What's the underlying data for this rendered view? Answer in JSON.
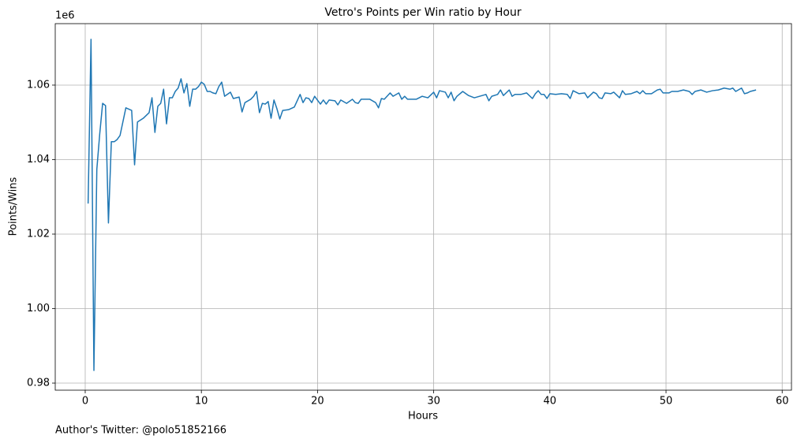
{
  "chart_data": {
    "type": "line",
    "title": "Vetro's Points per Win ratio by Hour",
    "xlabel": "Hours",
    "ylabel": "Points/Wins",
    "y_offset_label": "1e6",
    "footer": "Author's Twitter: @polo51852166",
    "grid": true,
    "xlim": [
      -2.58,
      60.8
    ],
    "ylim": [
      0.9781,
      1.0765
    ],
    "xticks": [
      0,
      10,
      20,
      30,
      40,
      50,
      60
    ],
    "yticks": [
      0.98,
      {
        "value": 1,
        "label": "1.00"
      },
      1.02,
      1.04,
      1.06
    ],
    "x": [
      0.25,
      0.5,
      0.75,
      1.0,
      1.25,
      1.5,
      1.75,
      2.0,
      2.25,
      2.5,
      2.75,
      3.0,
      3.5,
      4.0,
      4.25,
      4.5,
      5.0,
      5.5,
      5.75,
      6.0,
      6.25,
      6.5,
      6.75,
      7.0,
      7.25,
      7.5,
      7.75,
      8.0,
      8.25,
      8.5,
      8.75,
      9.0,
      9.25,
      9.5,
      9.75,
      10.0,
      10.25,
      10.5,
      10.75,
      11.0,
      11.25,
      11.5,
      11.75,
      12.0,
      12.5,
      12.75,
      13.25,
      13.5,
      13.75,
      14.25,
      14.5,
      14.75,
      15.0,
      15.25,
      15.5,
      15.75,
      16.0,
      16.25,
      16.5,
      16.75,
      17.0,
      17.5,
      18.0,
      18.5,
      18.75,
      19.0,
      19.25,
      19.5,
      19.75,
      20.25,
      20.5,
      20.75,
      21.0,
      21.5,
      21.75,
      22.0,
      22.5,
      23.0,
      23.25,
      23.5,
      23.75,
      24.5,
      25.0,
      25.25,
      25.5,
      25.75,
      26.25,
      26.5,
      27.0,
      27.25,
      27.5,
      27.75,
      28.5,
      29.0,
      29.5,
      30.0,
      30.25,
      30.5,
      31.0,
      31.25,
      31.5,
      31.75,
      32.0,
      32.5,
      33.0,
      33.5,
      34.5,
      34.75,
      35.0,
      35.5,
      35.75,
      36.0,
      36.5,
      36.75,
      37.0,
      37.5,
      38.0,
      38.5,
      38.75,
      39.0,
      39.25,
      39.5,
      39.75,
      40.0,
      40.5,
      41.0,
      41.5,
      41.75,
      42.0,
      42.5,
      43.0,
      43.25,
      43.75,
      44.0,
      44.25,
      44.5,
      44.75,
      45.25,
      45.5,
      46.0,
      46.25,
      46.5,
      47.0,
      47.5,
      47.75,
      48.0,
      48.25,
      48.75,
      49.25,
      49.5,
      49.75,
      50.25,
      50.5,
      51.0,
      51.5,
      52.0,
      52.25,
      52.5,
      53.0,
      53.5,
      54.0,
      54.5,
      55.0,
      55.5,
      55.75,
      56.0,
      56.5,
      56.75,
      57.0,
      57.25,
      57.75
    ],
    "series": [
      {
        "color": "#1f77b4",
        "values": [
          1.0282,
          1.0723,
          0.9834,
          1.0374,
          1.0469,
          1.0551,
          1.0545,
          1.023,
          1.0448,
          1.0448,
          1.0454,
          1.0465,
          1.0539,
          1.0532,
          1.0386,
          1.0501,
          1.0511,
          1.0526,
          1.0566,
          1.0473,
          1.0543,
          1.0551,
          1.0589,
          1.0496,
          1.0566,
          1.0566,
          1.0583,
          1.0592,
          1.0617,
          1.0579,
          1.0604,
          1.0543,
          1.0589,
          1.0589,
          1.0596,
          1.0608,
          1.0602,
          1.0583,
          1.0583,
          1.0579,
          1.0577,
          1.0596,
          1.0608,
          1.057,
          1.0581,
          1.0564,
          1.0568,
          1.0528,
          1.0553,
          1.0562,
          1.057,
          1.0583,
          1.0526,
          1.0551,
          1.0549,
          1.0556,
          1.0511,
          1.056,
          1.0537,
          1.0509,
          1.0532,
          1.0534,
          1.0541,
          1.0575,
          1.0553,
          1.0566,
          1.0564,
          1.0553,
          1.057,
          1.0549,
          1.056,
          1.0549,
          1.056,
          1.0558,
          1.0547,
          1.056,
          1.0551,
          1.0562,
          1.0553,
          1.0551,
          1.0562,
          1.0562,
          1.0553,
          1.0539,
          1.0564,
          1.0562,
          1.0579,
          1.057,
          1.0579,
          1.0562,
          1.057,
          1.0562,
          1.0562,
          1.057,
          1.0566,
          1.0581,
          1.0566,
          1.0585,
          1.0581,
          1.0566,
          1.0581,
          1.0558,
          1.057,
          1.0583,
          1.0572,
          1.0566,
          1.0575,
          1.0558,
          1.057,
          1.0575,
          1.0587,
          1.0572,
          1.0587,
          1.057,
          1.0575,
          1.0575,
          1.0579,
          1.0564,
          1.0577,
          1.0585,
          1.0575,
          1.0575,
          1.0564,
          1.0577,
          1.0575,
          1.0577,
          1.0575,
          1.0564,
          1.0585,
          1.0577,
          1.0579,
          1.0566,
          1.0581,
          1.0577,
          1.0566,
          1.0564,
          1.0579,
          1.0577,
          1.0581,
          1.0566,
          1.0585,
          1.0575,
          1.0577,
          1.0583,
          1.0577,
          1.0585,
          1.0577,
          1.0577,
          1.0587,
          1.0589,
          1.0579,
          1.0579,
          1.0583,
          1.0583,
          1.0587,
          1.0583,
          1.0575,
          1.0583,
          1.0587,
          1.0581,
          1.0585,
          1.0587,
          1.0592,
          1.0589,
          1.0592,
          1.0583,
          1.0592,
          1.0577,
          1.0579,
          1.0583,
          1.0587
        ]
      }
    ]
  }
}
